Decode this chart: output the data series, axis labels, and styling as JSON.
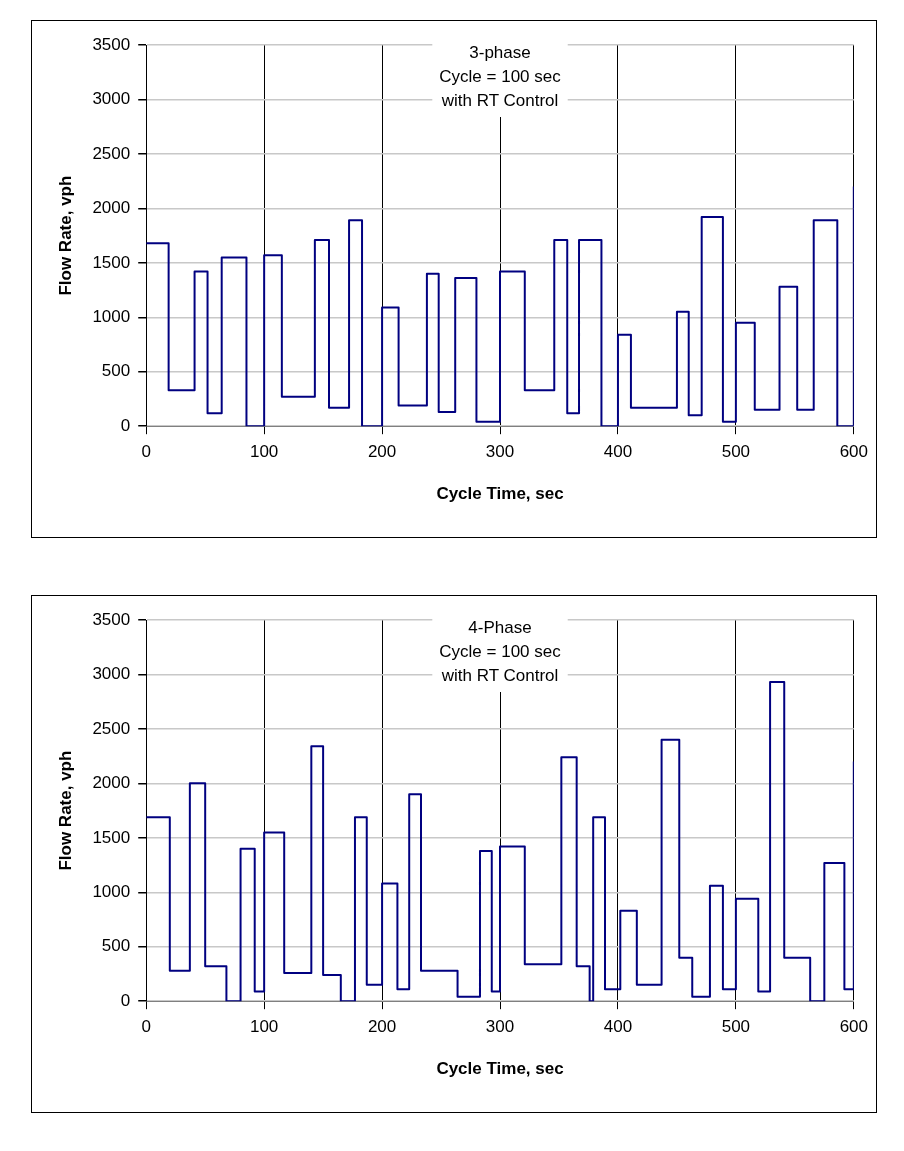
{
  "chart_data": [
    {
      "type": "step",
      "title": "3-phase\nCycle = 100 sec\nwith RT Control",
      "xlabel": "Cycle Time, sec",
      "ylabel": "Flow Rate, vph",
      "xlim": [
        0,
        600
      ],
      "xticks": [
        0,
        100,
        200,
        300,
        400,
        500,
        600
      ],
      "ylim": [
        0,
        3500
      ],
      "yticks": [
        0,
        500,
        1000,
        1500,
        2000,
        2500,
        3000,
        3500
      ],
      "grid": true,
      "legend": false,
      "marker": "none",
      "line_style": "solid",
      "series": [
        {
          "color": "#000080",
          "x": [
            0,
            19,
            41,
            52,
            64,
            85,
            100,
            115,
            143,
            155,
            172,
            183,
            200,
            214,
            238,
            248,
            262,
            280,
            300,
            321,
            346,
            357,
            367,
            386,
            400,
            411,
            450,
            460,
            471,
            489,
            500,
            516,
            537,
            552,
            566,
            586,
            600
          ],
          "values": [
            1680,
            330,
            1420,
            120,
            1550,
            0,
            1570,
            270,
            1710,
            170,
            1890,
            0,
            1090,
            190,
            1400,
            130,
            1360,
            40,
            1420,
            330,
            1710,
            120,
            1710,
            0,
            840,
            170,
            1050,
            100,
            1920,
            40,
            950,
            150,
            1280,
            150,
            1890,
            0,
            2200
          ]
        }
      ]
    },
    {
      "type": "step",
      "title": "4-Phase\nCycle = 100 sec\nwith RT Control",
      "xlabel": "Cycle Time, sec",
      "ylabel": "Flow Rate, vph",
      "xlim": [
        0,
        600
      ],
      "xticks": [
        0,
        100,
        200,
        300,
        400,
        500,
        600
      ],
      "ylim": [
        0,
        3500
      ],
      "yticks": [
        0,
        500,
        1000,
        1500,
        2000,
        2500,
        3000,
        3500
      ],
      "grid": true,
      "legend": false,
      "marker": "none",
      "line_style": "solid",
      "series": [
        {
          "color": "#000080",
          "x": [
            0,
            20,
            37,
            50,
            68,
            80,
            92,
            100,
            117,
            140,
            150,
            165,
            177,
            187,
            200,
            213,
            223,
            233,
            264,
            283,
            293,
            300,
            321,
            352,
            365,
            376,
            379,
            389,
            402,
            416,
            437,
            452,
            463,
            478,
            489,
            500,
            519,
            529,
            541,
            563,
            575,
            592,
            600
          ],
          "values": [
            1690,
            280,
            2000,
            320,
            0,
            1400,
            90,
            1550,
            260,
            2340,
            240,
            0,
            1690,
            150,
            1080,
            110,
            1900,
            280,
            40,
            1380,
            90,
            1420,
            340,
            2240,
            320,
            0,
            1690,
            110,
            830,
            150,
            2400,
            400,
            40,
            1060,
            110,
            940,
            90,
            2930,
            400,
            0,
            1270,
            110,
            2200
          ]
        }
      ]
    }
  ]
}
